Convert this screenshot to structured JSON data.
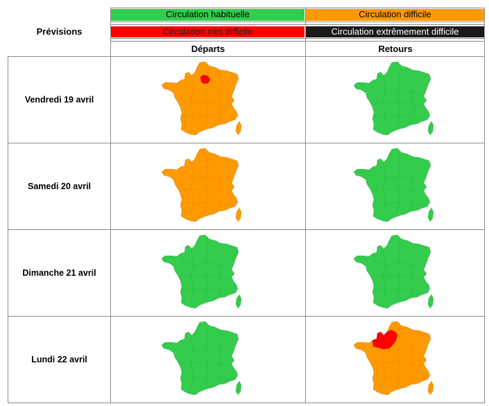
{
  "header": {
    "corner_label": "Prévisions",
    "col_departs": "Départs",
    "col_retours": "Retours"
  },
  "legend": [
    {
      "key": "habituelle",
      "label": "Circulation habituelle",
      "color": "#33cc4d",
      "text_color": "#000000"
    },
    {
      "key": "difficile",
      "label": "Circulation difficile",
      "color": "#ff9900",
      "text_color": "#000000"
    },
    {
      "key": "tres_difficile",
      "label": "Circulation très difficile",
      "color": "#ff0000",
      "text_color": "#222222"
    },
    {
      "key": "extreme",
      "label": "Circulation extrêmement difficile",
      "color": "#1a1a1a",
      "text_color": "#ffffff"
    }
  ],
  "days": [
    {
      "label": "Vendredi 19 avril",
      "departs": "difficile",
      "departs_hotspot": "paris",
      "retours": "habituelle",
      "retours_hotspot": "none"
    },
    {
      "label": "Samedi 20 avril",
      "departs": "difficile",
      "departs_hotspot": "none",
      "retours": "habituelle",
      "retours_hotspot": "none"
    },
    {
      "label": "Dimanche 21 avril",
      "departs": "habituelle",
      "departs_hotspot": "none",
      "retours": "habituelle",
      "retours_hotspot": "none"
    },
    {
      "label": "Lundi 22 avril",
      "departs": "habituelle",
      "departs_hotspot": "none",
      "retours": "difficile",
      "retours_hotspot": "north-west"
    }
  ]
}
